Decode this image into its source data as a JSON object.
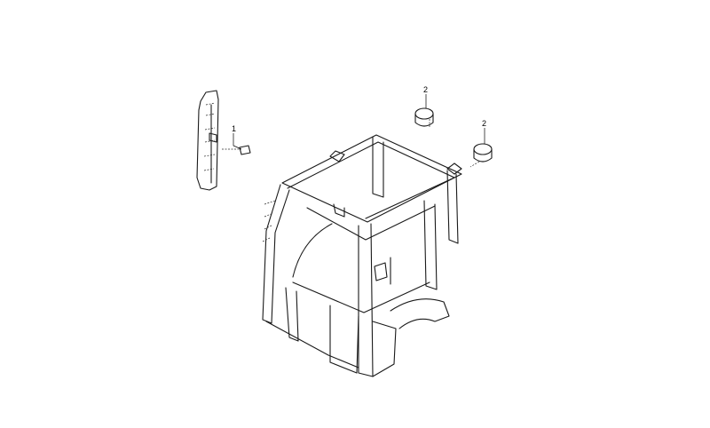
{
  "callouts": {
    "c1": "1",
    "c2a": "2",
    "c2b": "2"
  }
}
